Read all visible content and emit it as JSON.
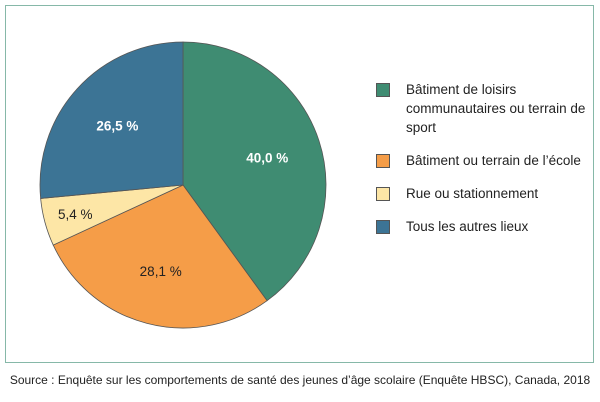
{
  "chart_data": {
    "type": "pie",
    "slices": [
      {
        "label": "Bâtiment de loisirs communautaires ou terrain de sport",
        "value": 40.0,
        "value_label": "40,0 %",
        "color": "#3f8c72",
        "label_color": "#ffffff"
      },
      {
        "label": "Bâtiment ou terrain de l’école",
        "value": 28.1,
        "value_label": "28,1 %",
        "color": "#f59d48",
        "label_color": "#222222"
      },
      {
        "label": "Rue ou stationnement",
        "value": 5.4,
        "value_label": "5,4 %",
        "color": "#fde6a6",
        "label_color": "#222222"
      },
      {
        "label": "Tous les autres lieux",
        "value": 26.5,
        "value_label": "26,5 %",
        "color": "#3c7495",
        "label_color": "#ffffff"
      }
    ],
    "legend_position": "right"
  },
  "legend": {
    "items": [
      {
        "label": "Bâtiment de loisirs communautaires ou terrain de sport",
        "color": "#3f8c72"
      },
      {
        "label": "Bâtiment ou terrain de l’école",
        "color": "#f59d48"
      },
      {
        "label": "Rue ou stationnement",
        "color": "#fde6a6"
      },
      {
        "label": "Tous les autres lieux",
        "color": "#3c7495"
      }
    ]
  },
  "source": "Source : Enquête sur les comportements de santé des jeunes d’âge scolaire (Enquête HBSC), Canada, 2018"
}
